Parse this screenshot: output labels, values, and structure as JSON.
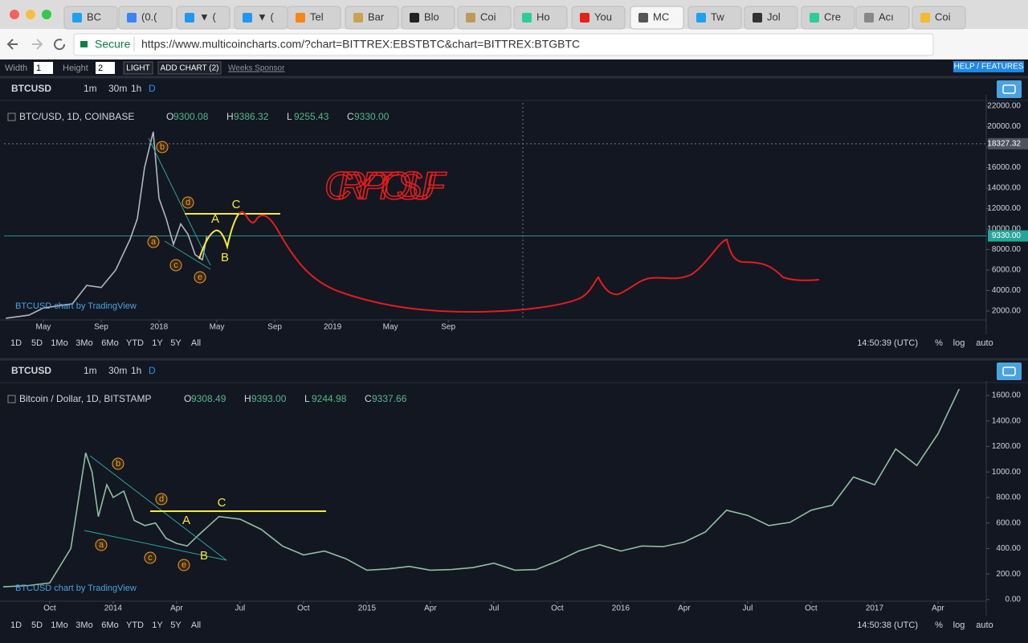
{
  "browser": {
    "tabs": [
      "BC",
      "(0.(",
      "▼ (",
      "▼ (",
      "Tel",
      "Bar",
      "Blo",
      "Coi",
      "Ho",
      "You",
      "MC",
      "Tw",
      "Jol",
      "Cre",
      "Acı",
      "Coi"
    ],
    "secure": "Secure",
    "url": "https://www.multicoincharts.com/?chart=BITTREX:EBSTBTC&chart=BITTREX:BTGBTC"
  },
  "toolbar": {
    "width_label": "Width",
    "width_value": "1",
    "height_label": "Height",
    "height_value": "2",
    "light": "LIGHT",
    "add_chart": "ADD CHART (2)",
    "sponsor": "Weeks Sponsor",
    "help": "HELP / FEATURES"
  },
  "panels": [
    {
      "symbol": "BTCUSD",
      "intervals": [
        "1m",
        "30m",
        "1h",
        "D"
      ],
      "ranges": [
        "1D",
        "5D",
        "1Mo",
        "3Mo",
        "6Mo",
        "YTD",
        "1Y",
        "5Y",
        "All"
      ],
      "time": "14:50:39 (UTC)",
      "options": [
        "%",
        "log",
        "auto"
      ],
      "watermark": "BTCUSD chart by TradingView"
    },
    {
      "symbol": "BTCUSD",
      "intervals": [
        "1m",
        "30m",
        "1h",
        "D"
      ],
      "ranges": [
        "1D",
        "5D",
        "1Mo",
        "3Mo",
        "6Mo",
        "YTD",
        "1Y",
        "5Y",
        "All"
      ],
      "time": "14:50:38 (UTC)",
      "options": [
        "%",
        "log",
        "auto"
      ],
      "watermark": "BTCUSD chart by TradingView"
    }
  ],
  "chart_data": [
    {
      "type": "line",
      "title": "BTC/USD, 1D, COINBASE",
      "ohlc": [
        {
          "label": "O",
          "value": "9300.08"
        },
        {
          "label": "H",
          "value": "9386.32"
        },
        {
          "label": "L",
          "value": "9255.43"
        },
        {
          "label": "C",
          "value": "9330.00"
        }
      ],
      "x": [
        -2.6,
        -1,
        0,
        1,
        2,
        3,
        4,
        5,
        6,
        6.5,
        7,
        7.6,
        8,
        8.5,
        9,
        9.5,
        10,
        10.5,
        11,
        11.3
      ],
      "values": [
        1300,
        1600,
        2300,
        2500,
        2700,
        4500,
        4300,
        6000,
        9000,
        11000,
        16000,
        19500,
        13000,
        11000,
        8500,
        10500,
        9500,
        7500,
        7000,
        9300
      ],
      "color": "#b2b5be",
      "xlim": [
        -2.72,
        65.2
      ],
      "ylim": [
        1137,
        22314
      ],
      "xticks": [
        {
          "value": 0,
          "label": "May"
        },
        {
          "value": 4,
          "label": "Sep"
        },
        {
          "value": 8,
          "label": "2018"
        },
        {
          "value": 12,
          "label": "May"
        },
        {
          "value": 16,
          "label": "Sep"
        },
        {
          "value": 20,
          "label": "2019"
        },
        {
          "value": 24,
          "label": "May"
        },
        {
          "value": 28,
          "label": "Sep"
        }
      ],
      "yticks": [
        {
          "value": 2000,
          "label": "2000.00"
        },
        {
          "value": 4000,
          "label": "4000.00"
        },
        {
          "value": 6000,
          "label": "6000.00"
        },
        {
          "value": 8000,
          "label": "8000.00"
        },
        {
          "value": 10000,
          "label": "10000.00"
        },
        {
          "value": 12000,
          "label": "12000.00"
        },
        {
          "value": 14000,
          "label": "14000.00"
        },
        {
          "value": 16000,
          "label": "16000.00"
        },
        {
          "value": 18000,
          "label": "18000.00"
        },
        {
          "value": 20000,
          "label": "20000.00"
        },
        {
          "value": 22000,
          "label": "22000.00"
        }
      ],
      "last_price": {
        "value": 9330,
        "label": "9330.00"
      },
      "crosshair": {
        "value": 18327.32,
        "label": "18327.32"
      },
      "wave_labels": [
        "a",
        "b",
        "c",
        "d",
        "e",
        "A",
        "B",
        "C"
      ],
      "annotation": "CRYPTOSUF",
      "grid": false
    },
    {
      "type": "line",
      "title": "Bitcoin / Dollar, 1D, BITSTAMP",
      "ohlc": [
        {
          "label": "O",
          "value": "9308.49"
        },
        {
          "label": "H",
          "value": "9393.00"
        },
        {
          "label": "L",
          "value": "9244.98"
        },
        {
          "label": "C",
          "value": "9337.66"
        }
      ],
      "x": [
        -2.2,
        -1,
        0,
        1,
        1.7,
        2,
        2.3,
        2.7,
        3,
        3.5,
        4,
        4.5,
        5,
        5.5,
        6,
        6.5,
        7,
        8,
        9,
        10,
        11,
        12,
        13,
        14,
        15,
        16,
        17,
        18,
        19,
        20,
        21,
        22,
        23,
        24,
        25,
        26,
        27,
        28,
        29,
        30,
        31,
        32,
        33,
        34,
        35,
        36,
        37,
        38,
        39,
        40,
        41,
        42,
        43
      ],
      "values": [
        100,
        110,
        130,
        400,
        1150,
        1000,
        650,
        900,
        800,
        850,
        620,
        580,
        600,
        480,
        440,
        420,
        500,
        650,
        630,
        550,
        420,
        350,
        380,
        320,
        230,
        240,
        260,
        230,
        235,
        250,
        285,
        230,
        235,
        300,
        380,
        430,
        380,
        420,
        415,
        450,
        530,
        700,
        660,
        580,
        605,
        700,
        740,
        960,
        900,
        1180,
        1050,
        1300,
        1650
      ],
      "color": "#8fbf9f",
      "xlim": [
        -2.16,
        44.28
      ],
      "ylim": [
        -13,
        1650
      ],
      "xticks": [
        {
          "value": 0,
          "label": "Oct"
        },
        {
          "value": 3,
          "label": "2014"
        },
        {
          "value": 6,
          "label": "Apr"
        },
        {
          "value": 9,
          "label": "Jul"
        },
        {
          "value": 12,
          "label": "Oct"
        },
        {
          "value": 15,
          "label": "2015"
        },
        {
          "value": 18,
          "label": "Apr"
        },
        {
          "value": 21,
          "label": "Jul"
        },
        {
          "value": 24,
          "label": "Oct"
        },
        {
          "value": 27,
          "label": "2016"
        },
        {
          "value": 30,
          "label": "Apr"
        },
        {
          "value": 33,
          "label": "Jul"
        },
        {
          "value": 36,
          "label": "Oct"
        },
        {
          "value": 39,
          "label": "2017"
        },
        {
          "value": 42,
          "label": "Apr"
        }
      ],
      "yticks": [
        {
          "value": 0,
          "label": "0.00"
        },
        {
          "value": 200,
          "label": "200.00"
        },
        {
          "value": 400,
          "label": "400.00"
        },
        {
          "value": 600,
          "label": "600.00"
        },
        {
          "value": 800,
          "label": "800.00"
        },
        {
          "value": 1000,
          "label": "1000.00"
        },
        {
          "value": 1200,
          "label": "1200.00"
        },
        {
          "value": 1400,
          "label": "1400.00"
        },
        {
          "value": 1600,
          "label": "1600.00"
        }
      ],
      "wave_labels": [
        "a",
        "b",
        "c",
        "d",
        "e",
        "A",
        "B",
        "C"
      ],
      "grid": false
    }
  ]
}
